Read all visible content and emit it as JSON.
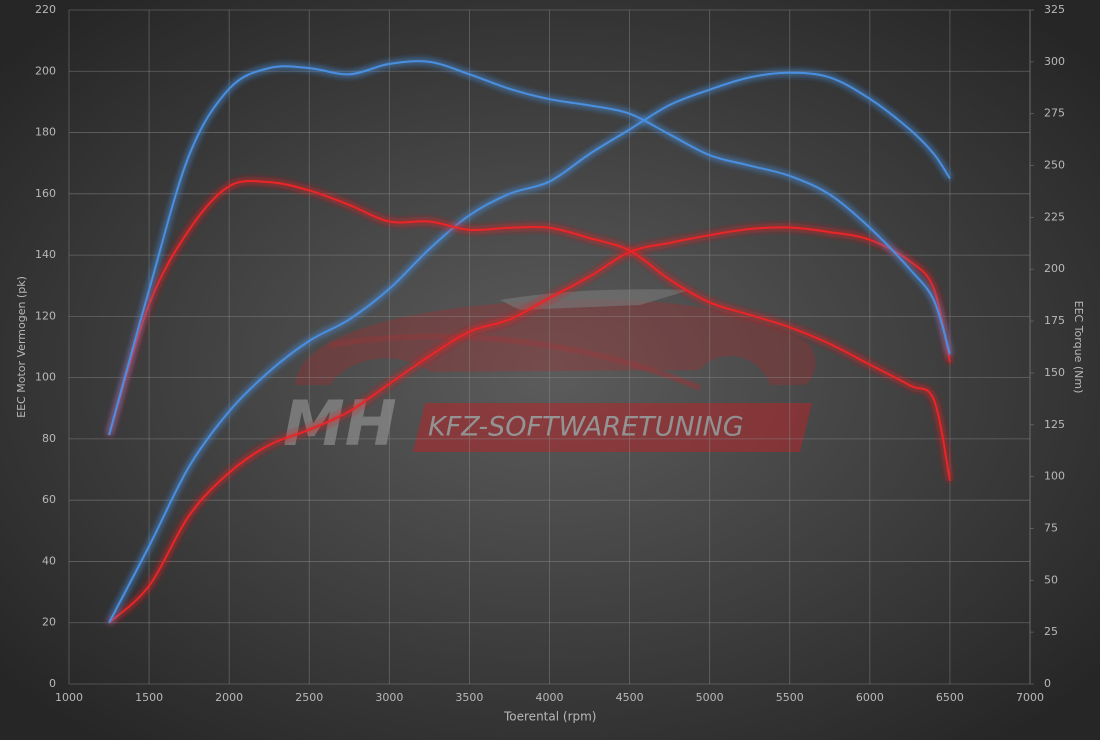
{
  "chart_data": {
    "type": "line",
    "x": [
      1250,
      1500,
      1750,
      2000,
      2250,
      2500,
      2750,
      3000,
      3250,
      3500,
      3750,
      4000,
      4250,
      4500,
      4750,
      5000,
      5250,
      5500,
      5750,
      6000,
      6250,
      6400,
      6500
    ],
    "series": [
      {
        "color": "#e8262a",
        "axis": "y",
        "values": [
          20,
          32,
          55,
          69,
          78,
          83,
          89,
          98,
          107,
          115,
          119,
          126,
          133,
          141,
          144,
          146.5,
          148.5,
          149,
          147.5,
          145,
          138,
          129,
          105
        ]
      },
      {
        "color": "#4a8fe0",
        "axis": "y",
        "values": [
          20,
          45,
          71,
          89,
          102,
          112,
          119,
          129,
          142,
          153,
          160,
          164,
          173,
          181,
          189,
          194,
          198,
          199.5,
          198,
          191,
          181,
          173,
          165
        ]
      },
      {
        "color": "#e8262a",
        "axis": "y2",
        "values": [
          120,
          183,
          219,
          240,
          242,
          238,
          231,
          223,
          223,
          219,
          220,
          220,
          215,
          209,
          195,
          184,
          178,
          172,
          164,
          154,
          144,
          137,
          98
        ]
      },
      {
        "color": "#4a8fe0",
        "axis": "y2",
        "values": [
          120,
          190,
          255,
          287,
          297,
          297,
          294,
          299,
          300,
          294,
          287,
          282,
          279,
          275,
          265,
          255,
          250,
          245,
          236,
          220,
          200,
          185,
          159
        ]
      }
    ],
    "xlabel": "Toerental (rpm)",
    "ylabel": "EEC Motor Vermogen (pk)",
    "y2label": "EEC Torque (Nm)",
    "xlim": [
      1000,
      7000
    ],
    "xticks": [
      1000,
      1500,
      2000,
      2500,
      3000,
      3500,
      4000,
      4500,
      5000,
      5500,
      6000,
      6500,
      7000
    ],
    "ylim": [
      0,
      220
    ],
    "yticks": [
      0,
      20,
      40,
      60,
      80,
      100,
      120,
      140,
      160,
      180,
      200,
      220
    ],
    "y2lim": [
      0,
      325
    ],
    "y2ticks": [
      0,
      25,
      50,
      75,
      100,
      125,
      150,
      175,
      200,
      225,
      250,
      275,
      300,
      325
    ],
    "grid": true,
    "watermark": {
      "left": "MH",
      "right": "KFZ-SOFTWARETUNING"
    }
  }
}
